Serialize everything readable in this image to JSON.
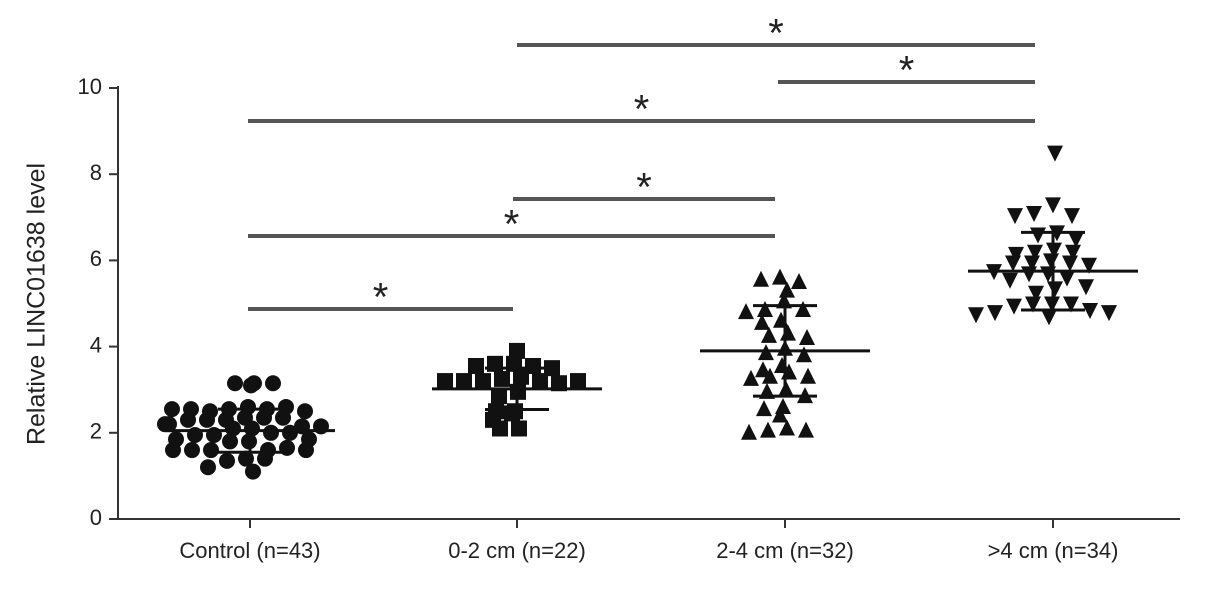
{
  "chart_data": {
    "type": "dotplot",
    "ylabel": "Relative LINC01638 level",
    "categories": [
      "Control (n=43)",
      "0-2 cm (n=22)",
      "2-4 cm (n=32)",
      ">4 cm (n=34)"
    ],
    "ylim": [
      0,
      10
    ],
    "yticks": [
      0,
      2,
      4,
      6,
      8,
      10
    ],
    "color": "#111111",
    "groups": [
      {
        "marker": "circle",
        "mean": 2.05,
        "sd": 0.5,
        "values": [
          3.15,
          3.15,
          3.15,
          3.1,
          2.6,
          2.55,
          2.55,
          2.5,
          2.6,
          2.55,
          2.5,
          2.55,
          2.35,
          2.3,
          2.35,
          2.3,
          2.35,
          2.3,
          2.15,
          2.1,
          2.2,
          2.15,
          2.1,
          2.2,
          2.0,
          1.95,
          2.0,
          1.95,
          1.85,
          1.8,
          1.85,
          1.8,
          1.6,
          1.6,
          1.65,
          1.6,
          1.6,
          1.6,
          1.4,
          1.35,
          1.4,
          1.2,
          1.1
        ]
      },
      {
        "marker": "square",
        "mean": 3.02,
        "sd": 0.48,
        "values": [
          3.9,
          3.6,
          3.6,
          3.55,
          3.55,
          3.5,
          3.3,
          3.25,
          3.2,
          3.2,
          3.15,
          3.2,
          3.2,
          3.2,
          2.95,
          2.85,
          2.5,
          2.5,
          2.45,
          2.3,
          2.1,
          2.1
        ]
      },
      {
        "marker": "triangle-up",
        "mean": 3.9,
        "sd": 1.05,
        "values": [
          5.6,
          5.55,
          5.5,
          5.3,
          5.05,
          4.85,
          4.85,
          4.8,
          4.6,
          4.55,
          4.3,
          4.25,
          4.2,
          3.95,
          3.85,
          3.8,
          3.55,
          3.45,
          3.4,
          3.3,
          3.3,
          3.25,
          3.0,
          2.95,
          2.85,
          2.6,
          2.55,
          2.4,
          2.1,
          2.05,
          2.05,
          2.0
        ]
      },
      {
        "marker": "triangle-down",
        "mean": 5.75,
        "sd": 0.9,
        "values": [
          8.5,
          7.3,
          7.1,
          7.05,
          7.05,
          6.65,
          6.6,
          6.5,
          6.25,
          6.2,
          6.2,
          6.15,
          6.0,
          5.95,
          5.95,
          5.95,
          5.9,
          5.75,
          5.7,
          5.7,
          5.6,
          5.55,
          5.4,
          5.35,
          5.25,
          5.0,
          5.0,
          5.0,
          4.95,
          4.85,
          4.8,
          4.8,
          4.75,
          4.7
        ]
      }
    ],
    "annotations": [
      {
        "text": "*"
      },
      {
        "text": "*"
      },
      {
        "text": "*"
      },
      {
        "text": "*"
      },
      {
        "text": "*"
      },
      {
        "text": "*"
      }
    ]
  }
}
